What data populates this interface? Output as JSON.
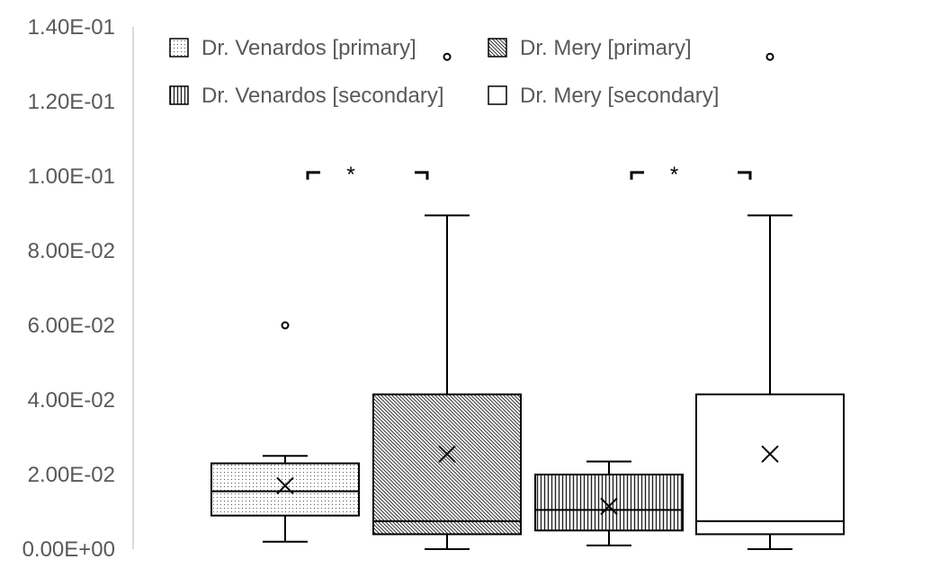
{
  "chart_data": {
    "type": "box",
    "ylim": [
      0,
      0.14
    ],
    "y_ticks": [
      0,
      0.02,
      0.04,
      0.06,
      0.08,
      0.1,
      0.12,
      0.14
    ],
    "y_tick_labels": [
      "0.00E+00",
      "2.00E-02",
      "4.00E-02",
      "6.00E-02",
      "8.00E-02",
      "1.00E-01",
      "1.20E-01",
      "1.40E-01"
    ],
    "gridlines": false,
    "legend_position": "top",
    "series": [
      {
        "name": "Dr. Venardos [primary]",
        "pattern": "dots",
        "min": 0.002,
        "q1": 0.009,
        "median": 0.0155,
        "q3": 0.023,
        "max": 0.025,
        "mean": 0.017,
        "outliers": [
          0.06
        ]
      },
      {
        "name": "Dr. Mery [primary]",
        "pattern": "diagonal",
        "min": 0.0,
        "q1": 0.004,
        "median": 0.0075,
        "q3": 0.0415,
        "max": 0.0895,
        "mean": 0.0255,
        "outliers": [
          0.132
        ]
      },
      {
        "name": "Dr. Venardos [secondary]",
        "pattern": "vertical",
        "min": 0.001,
        "q1": 0.005,
        "median": 0.0105,
        "q3": 0.02,
        "max": 0.0235,
        "mean": 0.0115,
        "outliers": []
      },
      {
        "name": "Dr. Mery [secondary]",
        "pattern": "none",
        "min": 0.0,
        "q1": 0.004,
        "median": 0.0075,
        "q3": 0.0415,
        "max": 0.0895,
        "mean": 0.0255,
        "outliers": [
          0.132
        ]
      }
    ],
    "significance": [
      {
        "label": "*",
        "between": [
          0,
          1
        ],
        "y": 0.101
      },
      {
        "label": "*",
        "between": [
          2,
          3
        ],
        "y": 0.101
      }
    ],
    "colors": {
      "axis": "#d9d9d9",
      "text": "#595959",
      "stroke": "#000000"
    }
  }
}
